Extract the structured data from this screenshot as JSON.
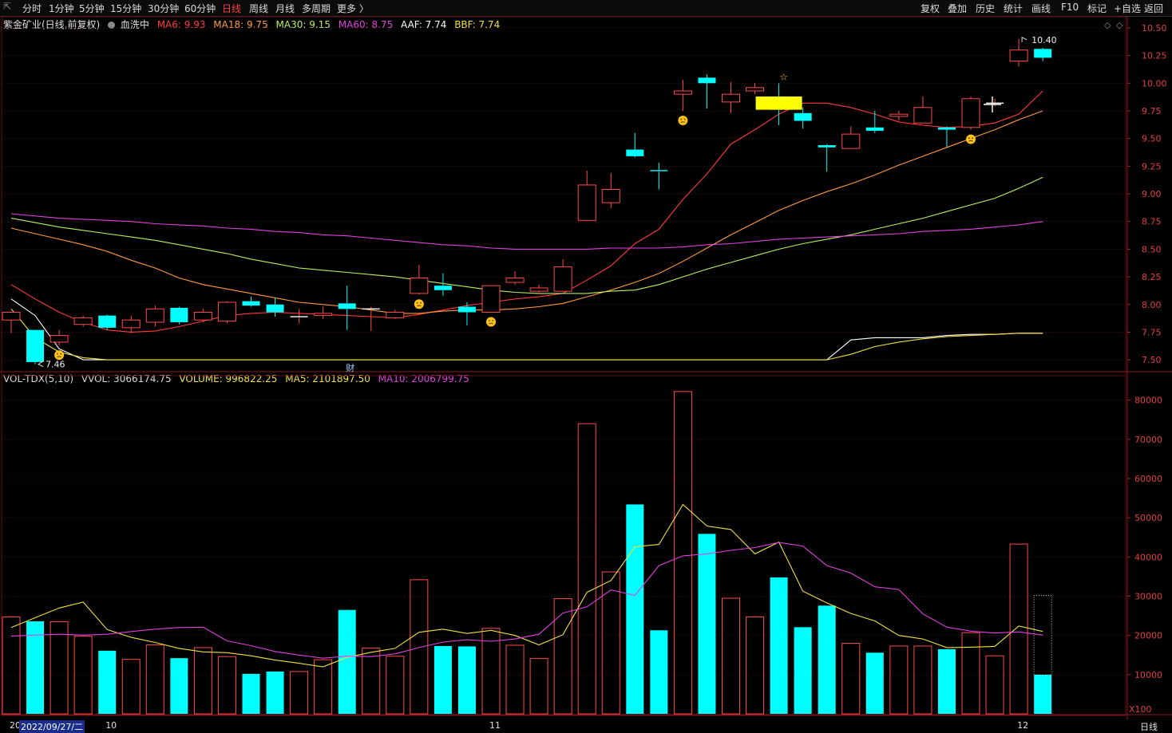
{
  "nav": {
    "back_icon": "back-arrow-icon",
    "tabs": [
      "分时",
      "1分钟",
      "5分钟",
      "15分钟",
      "30分钟",
      "60分钟",
      "日线",
      "周线",
      "月线",
      "多周期",
      "更多 〉"
    ],
    "active_tab": 6,
    "right_buttons": [
      "复权",
      "叠加",
      "历史",
      "统计",
      "画线",
      "F10",
      "标记",
      "+自选",
      "返回"
    ]
  },
  "price_legend": {
    "stock": "紫金矿业(日线,前复权)",
    "indicator_icon": "circle-toggle-icon",
    "indicator": "血洗中",
    "ma": [
      {
        "label": "MA6: 9.93",
        "color": "#ff3b3b"
      },
      {
        "label": "MA18: 9.75",
        "color": "#ff9a3c"
      },
      {
        "label": "MA30: 9.15",
        "color": "#b8f060"
      },
      {
        "label": "MA60: 8.75",
        "color": "#e040e0"
      },
      {
        "label": "AAF: 7.74",
        "color": "#ffffff"
      },
      {
        "label": "BBF: 7.74",
        "color": "#f0e040"
      }
    ]
  },
  "volume_legend": {
    "items": [
      {
        "label": "VOL-TDX(5,10)",
        "color": "#d8d8d8"
      },
      {
        "label": "VVOL: 3066174.75",
        "color": "#d8d8d8"
      },
      {
        "label": "VOLUME: 996822.25",
        "color": "#f0e040"
      },
      {
        "label": "MA5: 2101897.50",
        "color": "#f0e040"
      },
      {
        "label": "MA10: 2006799.75",
        "color": "#e040e0"
      }
    ]
  },
  "annotations": {
    "high_label": "10.40",
    "low_label": "7.46",
    "event_label": "财",
    "vol_unit": "X100"
  },
  "chart_data": {
    "type": "candlestick",
    "price_axis": {
      "ticks": [
        7.5,
        7.75,
        8.0,
        8.25,
        8.5,
        8.75,
        9.0,
        9.25,
        9.5,
        9.75,
        10.0,
        10.25,
        10.5
      ],
      "range": [
        7.4,
        10.55
      ]
    },
    "volume_axis": {
      "ticks": [
        10000,
        20000,
        30000,
        40000,
        50000,
        60000,
        70000,
        80000
      ],
      "range": [
        0,
        84000
      ]
    },
    "candles": [
      {
        "o": 7.86,
        "h": 7.93,
        "l": 7.74,
        "c": 7.93,
        "v": 24700
      },
      {
        "o": 7.77,
        "h": 7.77,
        "l": 7.46,
        "c": 7.48,
        "v": 23600
      },
      {
        "o": 7.66,
        "h": 7.77,
        "l": 7.63,
        "c": 7.72,
        "v": 23500
      },
      {
        "o": 7.82,
        "h": 7.9,
        "l": 7.8,
        "c": 7.88,
        "v": 19800
      },
      {
        "o": 7.9,
        "h": 7.91,
        "l": 7.77,
        "c": 7.79,
        "v": 16100
      },
      {
        "o": 7.79,
        "h": 7.9,
        "l": 7.74,
        "c": 7.86,
        "v": 13900
      },
      {
        "o": 7.84,
        "h": 7.99,
        "l": 7.8,
        "c": 7.96,
        "v": 17600
      },
      {
        "o": 7.97,
        "h": 7.98,
        "l": 7.82,
        "c": 7.84,
        "v": 14200
      },
      {
        "o": 7.86,
        "h": 7.96,
        "l": 7.84,
        "c": 7.93,
        "v": 16900
      },
      {
        "o": 7.85,
        "h": 8.03,
        "l": 7.83,
        "c": 8.02,
        "v": 14600
      },
      {
        "o": 8.03,
        "h": 8.07,
        "l": 7.98,
        "c": 7.99,
        "v": 10200
      },
      {
        "o": 8.0,
        "h": 8.06,
        "l": 7.89,
        "c": 7.93,
        "v": 10800
      },
      {
        "o": 7.88,
        "h": 7.96,
        "l": 7.83,
        "c": 7.89,
        "v": 10800
      },
      {
        "o": 7.9,
        "h": 7.98,
        "l": 7.87,
        "c": 7.92,
        "v": 13800
      },
      {
        "o": 8.01,
        "h": 8.17,
        "l": 7.77,
        "c": 7.96,
        "v": 26500
      },
      {
        "o": 7.96,
        "h": 7.98,
        "l": 7.76,
        "c": 7.96,
        "v": 16800
      },
      {
        "o": 7.88,
        "h": 7.95,
        "l": 7.87,
        "c": 7.93,
        "v": 14700
      },
      {
        "o": 8.1,
        "h": 8.36,
        "l": 8.09,
        "c": 8.24,
        "v": 34200
      },
      {
        "o": 8.17,
        "h": 8.28,
        "l": 8.08,
        "c": 8.13,
        "v": 17300
      },
      {
        "o": 7.98,
        "h": 8.02,
        "l": 7.81,
        "c": 7.93,
        "v": 17200
      },
      {
        "o": 7.93,
        "h": 8.17,
        "l": 7.93,
        "c": 8.17,
        "v": 21800
      },
      {
        "o": 8.2,
        "h": 8.3,
        "l": 8.18,
        "c": 8.24,
        "v": 17500
      },
      {
        "o": 8.12,
        "h": 8.18,
        "l": 8.1,
        "c": 8.15,
        "v": 14100
      },
      {
        "o": 8.12,
        "h": 8.41,
        "l": 8.12,
        "c": 8.34,
        "v": 29400
      },
      {
        "o": 8.76,
        "h": 9.21,
        "l": 8.76,
        "c": 9.08,
        "v": 74000
      },
      {
        "o": 8.92,
        "h": 9.19,
        "l": 8.87,
        "c": 9.04,
        "v": 36200
      },
      {
        "o": 9.4,
        "h": 9.55,
        "l": 9.33,
        "c": 9.34,
        "v": 53400
      },
      {
        "o": 9.21,
        "h": 9.28,
        "l": 9.04,
        "c": 9.2,
        "v": 21300
      },
      {
        "o": 9.9,
        "h": 10.03,
        "l": 9.75,
        "c": 9.93,
        "v": 82200
      },
      {
        "o": 10.05,
        "h": 10.08,
        "l": 9.77,
        "c": 10.0,
        "v": 45900
      },
      {
        "o": 9.83,
        "h": 10.01,
        "l": 9.73,
        "c": 9.9,
        "v": 29500
      },
      {
        "o": 9.93,
        "h": 10.0,
        "l": 9.9,
        "c": 9.96,
        "v": 24700
      },
      {
        "o": 9.88,
        "h": 10.0,
        "l": 9.62,
        "c": 9.76,
        "v": 34800
      },
      {
        "o": 9.73,
        "h": 9.78,
        "l": 9.59,
        "c": 9.66,
        "v": 22100
      },
      {
        "o": 9.44,
        "h": 9.45,
        "l": 9.2,
        "c": 9.42,
        "v": 27600
      },
      {
        "o": 9.41,
        "h": 9.61,
        "l": 9.41,
        "c": 9.54,
        "v": 18000
      },
      {
        "o": 9.6,
        "h": 9.75,
        "l": 9.55,
        "c": 9.57,
        "v": 15600
      },
      {
        "o": 9.7,
        "h": 9.75,
        "l": 9.66,
        "c": 9.72,
        "v": 17300
      },
      {
        "o": 9.64,
        "h": 9.88,
        "l": 9.64,
        "c": 9.78,
        "v": 17300
      },
      {
        "o": 9.6,
        "h": 9.61,
        "l": 9.42,
        "c": 9.58,
        "v": 16500
      },
      {
        "o": 9.6,
        "h": 9.88,
        "l": 9.58,
        "c": 9.86,
        "v": 20700
      },
      {
        "o": 9.82,
        "h": 9.86,
        "l": 9.79,
        "c": 9.82,
        "v": 14800
      },
      {
        "o": 10.2,
        "h": 10.4,
        "l": 10.15,
        "c": 10.3,
        "v": 43300
      },
      {
        "o": 10.31,
        "h": 10.32,
        "l": 10.2,
        "c": 10.23,
        "v": 9968
      }
    ],
    "ma_lines": [
      {
        "name": "MA6",
        "color": "#ff3b3b",
        "values": [
          8.18,
          8.05,
          7.93,
          7.84,
          7.77,
          7.75,
          7.76,
          7.8,
          7.85,
          7.9,
          7.92,
          7.93,
          7.92,
          7.91,
          7.9,
          7.89,
          7.88,
          7.91,
          7.95,
          7.99,
          8.02,
          8.05,
          8.07,
          8.1,
          8.22,
          8.35,
          8.55,
          8.68,
          8.95,
          9.18,
          9.45,
          9.58,
          9.72,
          9.82,
          9.82,
          9.78,
          9.72,
          9.65,
          9.62,
          9.6,
          9.61,
          9.64,
          9.72,
          9.93
        ]
      },
      {
        "name": "MA18",
        "color": "#ff9a3c",
        "values": [
          8.69,
          8.64,
          8.59,
          8.54,
          8.48,
          8.4,
          8.33,
          8.24,
          8.18,
          8.14,
          8.1,
          8.06,
          8.02,
          8.0,
          7.98,
          7.95,
          7.92,
          7.92,
          7.94,
          7.95,
          7.95,
          7.96,
          7.98,
          8.01,
          8.07,
          8.13,
          8.2,
          8.28,
          8.39,
          8.51,
          8.63,
          8.74,
          8.85,
          8.94,
          9.02,
          9.09,
          9.17,
          9.26,
          9.34,
          9.42,
          9.5,
          9.58,
          9.67,
          9.75
        ]
      },
      {
        "name": "MA30",
        "color": "#b8f060",
        "values": [
          8.78,
          8.74,
          8.7,
          8.67,
          8.64,
          8.61,
          8.58,
          8.54,
          8.5,
          8.46,
          8.41,
          8.37,
          8.33,
          8.31,
          8.29,
          8.27,
          8.25,
          8.22,
          8.19,
          8.16,
          8.13,
          8.11,
          8.1,
          8.1,
          8.1,
          8.12,
          8.13,
          8.18,
          8.25,
          8.32,
          8.38,
          8.44,
          8.5,
          8.55,
          8.59,
          8.63,
          8.68,
          8.73,
          8.78,
          8.84,
          8.9,
          8.96,
          9.05,
          9.15
        ]
      },
      {
        "name": "MA60",
        "color": "#e040e0",
        "values": [
          8.82,
          8.8,
          8.78,
          8.77,
          8.76,
          8.75,
          8.73,
          8.72,
          8.71,
          8.69,
          8.68,
          8.66,
          8.65,
          8.63,
          8.62,
          8.6,
          8.58,
          8.56,
          8.54,
          8.53,
          8.51,
          8.5,
          8.5,
          8.5,
          8.5,
          8.51,
          8.51,
          8.51,
          8.52,
          8.54,
          8.55,
          8.57,
          8.59,
          8.6,
          8.61,
          8.62,
          8.63,
          8.64,
          8.66,
          8.67,
          8.68,
          8.7,
          8.72,
          8.75
        ]
      },
      {
        "name": "AAF",
        "color": "#ffffff",
        "values": [
          8.05,
          7.9,
          7.6,
          7.5,
          7.5,
          7.5,
          7.5,
          7.5,
          7.5,
          7.5,
          7.5,
          7.5,
          7.5,
          7.5,
          7.5,
          7.5,
          7.5,
          7.5,
          7.5,
          7.5,
          7.5,
          7.5,
          7.5,
          7.5,
          7.5,
          7.5,
          7.5,
          7.5,
          7.5,
          7.5,
          7.5,
          7.5,
          7.5,
          7.5,
          7.5,
          7.68,
          7.7,
          7.7,
          7.7,
          7.72,
          7.73,
          7.73,
          7.74,
          7.74
        ]
      },
      {
        "name": "BBF",
        "color": "#f0e040",
        "values": [
          7.96,
          7.7,
          7.57,
          7.52,
          7.5,
          7.5,
          7.5,
          7.5,
          7.5,
          7.5,
          7.5,
          7.5,
          7.5,
          7.5,
          7.5,
          7.5,
          7.5,
          7.5,
          7.5,
          7.5,
          7.5,
          7.5,
          7.5,
          7.5,
          7.5,
          7.5,
          7.5,
          7.5,
          7.5,
          7.5,
          7.5,
          7.5,
          7.5,
          7.5,
          7.5,
          7.55,
          7.62,
          7.66,
          7.69,
          7.71,
          7.72,
          7.73,
          7.74,
          7.74
        ]
      }
    ],
    "vol_ma": [
      {
        "name": "MA5",
        "color": "#f0e040",
        "values": [
          22000,
          24500,
          27000,
          28500,
          21500,
          19500,
          18200,
          16700,
          15800,
          15600,
          14800,
          13700,
          12900,
          12000,
          14400,
          15700,
          16700,
          20800,
          21600,
          20500,
          21300,
          20000,
          17600,
          20200,
          31000,
          34000,
          42600,
          43200,
          53400,
          47900,
          47000,
          40800,
          43800,
          31300,
          28300,
          25600,
          23700,
          20000,
          19100,
          16900,
          17000,
          17200,
          22400,
          21019
        ]
      },
      {
        "name": "MA10",
        "color": "#e040e0",
        "values": [
          19800,
          20100,
          20300,
          20100,
          20300,
          21000,
          21600,
          22000,
          22100,
          18600,
          17400,
          15900,
          15000,
          14200,
          14700,
          14600,
          15300,
          16900,
          18300,
          18900,
          18500,
          19100,
          20300,
          25700,
          27300,
          31600,
          30200,
          37800,
          40300,
          40800,
          41700,
          42400,
          43700,
          42800,
          37800,
          35900,
          32400,
          31700,
          25500,
          22100,
          21100,
          20600,
          20900,
          20068
        ]
      }
    ],
    "markers": {
      "star": [
        32
      ],
      "frown": [
        2,
        17,
        20,
        28,
        40
      ]
    },
    "x_labels": [
      {
        "i": 0,
        "label": "20"
      },
      {
        "i": 1,
        "label": "2022/09/27/二",
        "selected": true
      },
      {
        "i": 4,
        "label": "10"
      },
      {
        "i": 20,
        "label": "11"
      },
      {
        "i": 42,
        "label": "12"
      }
    ],
    "period_label": "日线"
  }
}
